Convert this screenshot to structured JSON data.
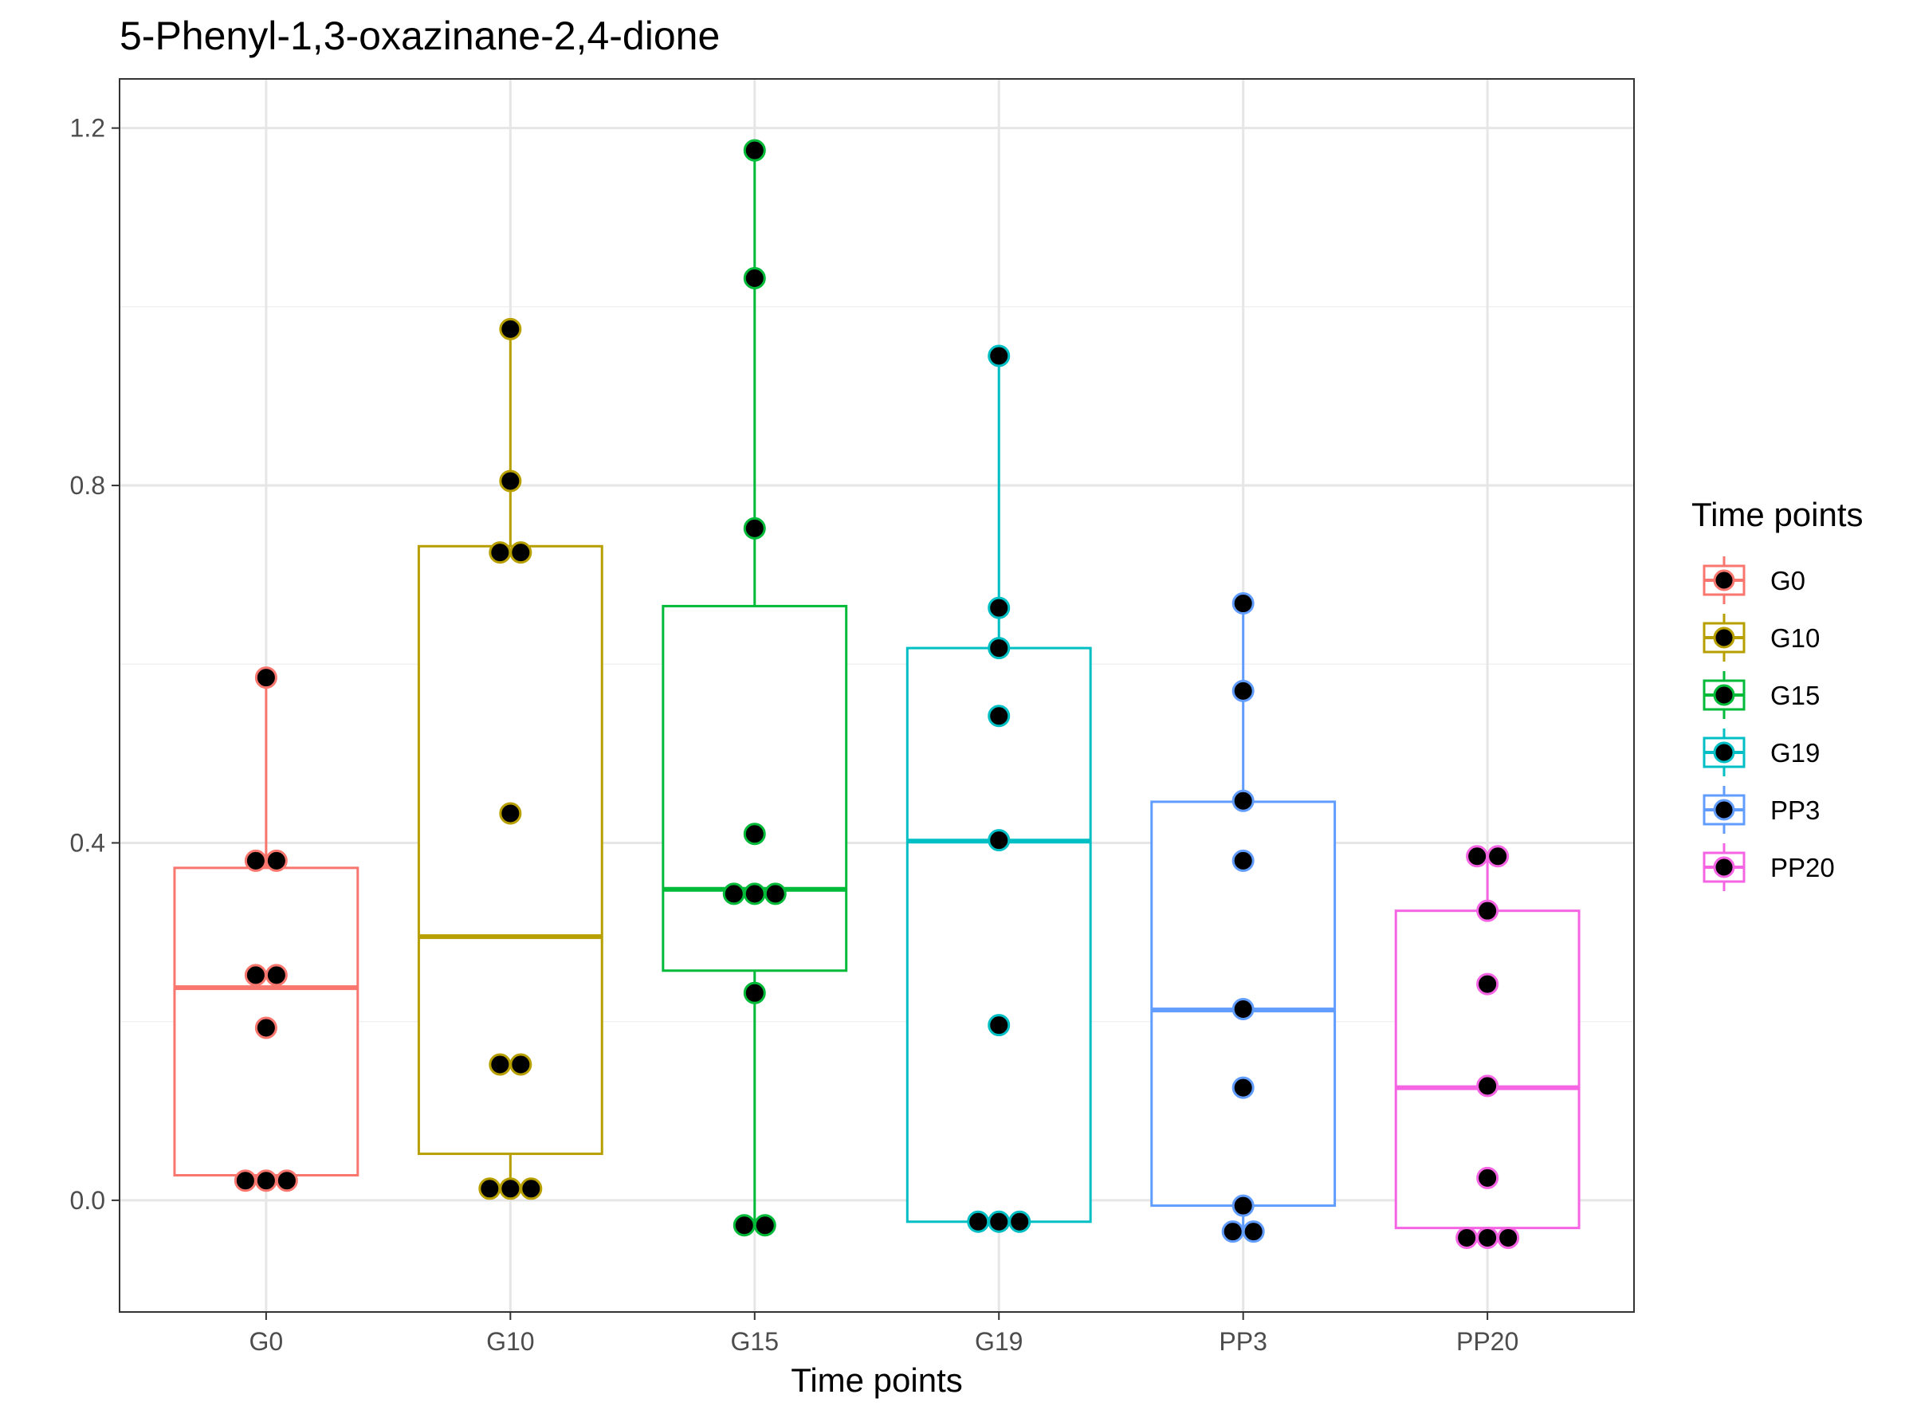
{
  "chart_data": {
    "type": "box",
    "title": "5-Phenyl-1,3-oxazinane-2,4-dione",
    "xlabel": "Time points",
    "ylabel": "",
    "ylim": [
      -0.125,
      1.255
    ],
    "yticks": [
      0.0,
      0.4,
      0.8,
      1.2
    ],
    "yticklabels": [
      "0.0",
      "0.4",
      "0.8",
      "1.2"
    ],
    "categories": [
      "G0",
      "G10",
      "G15",
      "G19",
      "PP3",
      "PP20"
    ],
    "grid": true,
    "legend": {
      "title": "Time points",
      "position": "right",
      "entries": [
        "G0",
        "G10",
        "G15",
        "G19",
        "PP3",
        "PP20"
      ]
    },
    "series": [
      {
        "name": "G0",
        "color": "#F8766D",
        "box": {
          "min": 0.022,
          "q1": 0.028,
          "median": 0.238,
          "q3": 0.372,
          "max": 0.585
        },
        "points": [
          0.585,
          0.38,
          0.38,
          0.252,
          0.252,
          0.193,
          0.022,
          0.022,
          0.022
        ]
      },
      {
        "name": "G10",
        "color": "#B79F00",
        "box": {
          "min": 0.013,
          "q1": 0.052,
          "median": 0.295,
          "q3": 0.732,
          "max": 0.975
        },
        "points": [
          0.975,
          0.805,
          0.725,
          0.725,
          0.433,
          0.152,
          0.152,
          0.013,
          0.013,
          0.013
        ]
      },
      {
        "name": "G15",
        "color": "#00BA38",
        "box": {
          "min": -0.028,
          "q1": 0.257,
          "median": 0.348,
          "q3": 0.665,
          "max": 1.175
        },
        "points": [
          1.175,
          1.032,
          0.752,
          0.41,
          0.343,
          0.343,
          0.343,
          0.232,
          -0.028,
          -0.028
        ]
      },
      {
        "name": "G19",
        "color": "#00BFC4",
        "box": {
          "min": -0.024,
          "q1": -0.024,
          "median": 0.402,
          "q3": 0.618,
          "max": 0.945
        },
        "points": [
          0.945,
          0.663,
          0.618,
          0.542,
          0.403,
          0.196,
          -0.024,
          -0.024,
          -0.024
        ]
      },
      {
        "name": "PP3",
        "color": "#619CFF",
        "box": {
          "min": -0.035,
          "q1": -0.006,
          "median": 0.213,
          "q3": 0.446,
          "max": 0.668
        },
        "points": [
          0.668,
          0.57,
          0.447,
          0.38,
          0.214,
          0.126,
          -0.006,
          -0.035,
          -0.035
        ]
      },
      {
        "name": "PP20",
        "color": "#F564E3",
        "box": {
          "min": -0.042,
          "q1": -0.031,
          "median": 0.126,
          "q3": 0.324,
          "max": 0.385
        },
        "points": [
          0.385,
          0.385,
          0.324,
          0.242,
          0.128,
          0.025,
          -0.042,
          -0.042,
          -0.042
        ]
      }
    ]
  }
}
